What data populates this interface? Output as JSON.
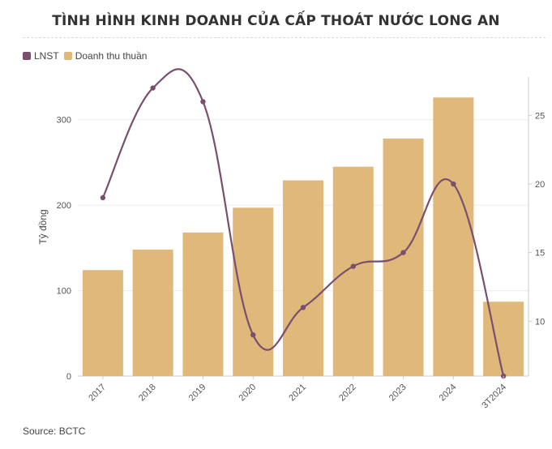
{
  "title": "TÌNH HÌNH KINH DOANH CỦA CẤP THOÁT NƯỚC LONG AN",
  "source": "Source: BCTC",
  "legend": [
    {
      "name": "LNST",
      "color": "#7a4f6e"
    },
    {
      "name": "Doanh thu thuần",
      "color": "#dfb87a"
    }
  ],
  "chart_data": {
    "type": "bar",
    "categories": [
      "2017",
      "2018",
      "2019",
      "2020",
      "2021",
      "2022",
      "2023",
      "2024",
      "3T2024"
    ],
    "series": [
      {
        "name": "Doanh thu thuần",
        "type": "bar",
        "axis": "left",
        "color": "#dfb87a",
        "values": [
          124,
          148,
          168,
          197,
          229,
          245,
          278,
          326,
          87
        ]
      },
      {
        "name": "LNST",
        "type": "line",
        "axis": "right",
        "color": "#7a4f6e",
        "values": [
          19,
          27,
          26,
          9,
          11,
          14,
          15,
          20,
          6
        ]
      }
    ],
    "ylabel": "Tỷ đồng",
    "ylim_left": [
      0,
      350
    ],
    "yticks_left": [
      0,
      100,
      200,
      300
    ],
    "ylim_right": [
      6,
      27.8
    ],
    "yticks_right": [
      10,
      15,
      20,
      25
    ],
    "grid": true
  }
}
